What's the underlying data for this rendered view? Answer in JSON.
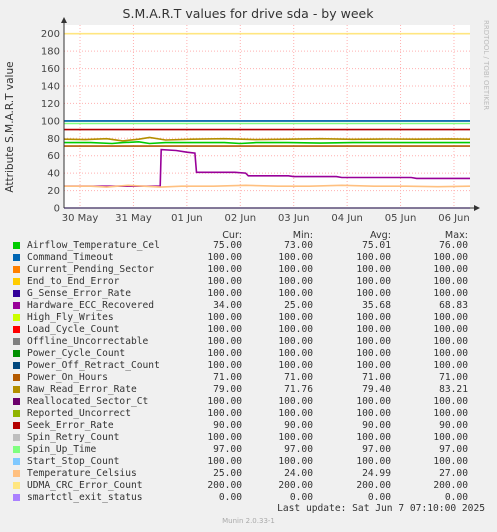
{
  "title": "S.M.A.R.T values for drive sda - by week",
  "watermark": "RRDTOOL / TOBI OETIKER",
  "footer": {
    "last_update": "Last update:  Sat Jun  7 07:10:00 2025",
    "munin": "Munin 2.0.33-1"
  },
  "legend_headers": {
    "cur": "Cur:",
    "min": "Min:",
    "avg": "Avg:",
    "max": "Max:"
  },
  "legend": [
    {
      "name": "Airflow_Temperature_Cel",
      "color": "#00cc00",
      "cur": "75.00",
      "min": "73.00",
      "avg": "75.01",
      "max": "76.00"
    },
    {
      "name": "Command_Timeout",
      "color": "#0066b3",
      "cur": "100.00",
      "min": "100.00",
      "avg": "100.00",
      "max": "100.00"
    },
    {
      "name": "Current_Pending_Sector",
      "color": "#ff8000",
      "cur": "100.00",
      "min": "100.00",
      "avg": "100.00",
      "max": "100.00"
    },
    {
      "name": "End_to_End_Error",
      "color": "#ffcc00",
      "cur": "100.00",
      "min": "100.00",
      "avg": "100.00",
      "max": "100.00"
    },
    {
      "name": "G_Sense_Error_Rate",
      "color": "#330099",
      "cur": "100.00",
      "min": "100.00",
      "avg": "100.00",
      "max": "100.00"
    },
    {
      "name": "Hardware_ECC_Recovered",
      "color": "#990099",
      "cur": "34.00",
      "min": "25.00",
      "avg": "35.68",
      "max": "68.83"
    },
    {
      "name": "High_Fly_Writes",
      "color": "#ccff00",
      "cur": "100.00",
      "min": "100.00",
      "avg": "100.00",
      "max": "100.00"
    },
    {
      "name": "Load_Cycle_Count",
      "color": "#ff0000",
      "cur": "100.00",
      "min": "100.00",
      "avg": "100.00",
      "max": "100.00"
    },
    {
      "name": "Offline_Uncorrectable",
      "color": "#808080",
      "cur": "100.00",
      "min": "100.00",
      "avg": "100.00",
      "max": "100.00"
    },
    {
      "name": "Power_Cycle_Count",
      "color": "#008f00",
      "cur": "100.00",
      "min": "100.00",
      "avg": "100.00",
      "max": "100.00"
    },
    {
      "name": "Power_Off_Retract_Count",
      "color": "#00487d",
      "cur": "100.00",
      "min": "100.00",
      "avg": "100.00",
      "max": "100.00"
    },
    {
      "name": "Power_On_Hours",
      "color": "#b35a00",
      "cur": "71.00",
      "min": "71.00",
      "avg": "71.00",
      "max": "71.00"
    },
    {
      "name": "Raw_Read_Error_Rate",
      "color": "#b38f00",
      "cur": "79.00",
      "min": "71.76",
      "avg": "79.40",
      "max": "83.21"
    },
    {
      "name": "Reallocated_Sector_Ct",
      "color": "#6b006b",
      "cur": "100.00",
      "min": "100.00",
      "avg": "100.00",
      "max": "100.00"
    },
    {
      "name": "Reported_Uncorrect",
      "color": "#8fb300",
      "cur": "100.00",
      "min": "100.00",
      "avg": "100.00",
      "max": "100.00"
    },
    {
      "name": "Seek_Error_Rate",
      "color": "#b30000",
      "cur": "90.00",
      "min": "90.00",
      "avg": "90.00",
      "max": "90.00"
    },
    {
      "name": "Spin_Retry_Count",
      "color": "#bebebe",
      "cur": "100.00",
      "min": "100.00",
      "avg": "100.00",
      "max": "100.00"
    },
    {
      "name": "Spin_Up_Time",
      "color": "#80ff80",
      "cur": "97.00",
      "min": "97.00",
      "avg": "97.00",
      "max": "97.00"
    },
    {
      "name": "Start_Stop_Count",
      "color": "#80c9ff",
      "cur": "100.00",
      "min": "100.00",
      "avg": "100.00",
      "max": "100.00"
    },
    {
      "name": "Temperature_Celsius",
      "color": "#ffc080",
      "cur": "25.00",
      "min": "24.00",
      "avg": "24.99",
      "max": "27.00"
    },
    {
      "name": "UDMA_CRC_Error_Count",
      "color": "#ffe680",
      "cur": "200.00",
      "min": "200.00",
      "avg": "200.00",
      "max": "200.00"
    },
    {
      "name": "smartctl_exit_status",
      "color": "#aa80ff",
      "cur": "0.00",
      "min": "0.00",
      "avg": "0.00",
      "max": "0.00"
    }
  ],
  "chart_data": {
    "type": "line",
    "title": "S.M.A.R.T values for drive sda - by week",
    "ylabel": "Attribute S.M.A.R.T value",
    "ylim": [
      0,
      210
    ],
    "yticks": [
      0,
      20,
      40,
      60,
      80,
      100,
      120,
      140,
      160,
      180,
      200
    ],
    "xlim": [
      0,
      7.6
    ],
    "xticks": [
      {
        "x": 0.3,
        "label": "30 May"
      },
      {
        "x": 1.3,
        "label": "31 May"
      },
      {
        "x": 2.3,
        "label": "01 Jun"
      },
      {
        "x": 3.3,
        "label": "02 Jun"
      },
      {
        "x": 4.3,
        "label": "03 Jun"
      },
      {
        "x": 5.3,
        "label": "04 Jun"
      },
      {
        "x": 6.3,
        "label": "05 Jun"
      },
      {
        "x": 7.3,
        "label": "06 Jun"
      }
    ],
    "grid": true,
    "series": [
      {
        "name": "UDMA_CRC_Error_Count",
        "color": "#ffe680",
        "points": [
          [
            0,
            200
          ],
          [
            7.6,
            200
          ]
        ]
      },
      {
        "name": "Current_Pending_Sector",
        "color": "#ff8000",
        "points": [
          [
            0,
            100
          ],
          [
            7.6,
            100
          ]
        ]
      },
      {
        "name": "Start_Stop_Count",
        "color": "#80c9ff",
        "points": [
          [
            0,
            100
          ],
          [
            7.6,
            100
          ]
        ]
      },
      {
        "name": "Command_Timeout",
        "color": "#0066b3",
        "points": [
          [
            0,
            100
          ],
          [
            7.6,
            100
          ]
        ]
      },
      {
        "name": "Spin_Up_Time",
        "color": "#80ff80",
        "points": [
          [
            0,
            97
          ],
          [
            7.6,
            97
          ]
        ]
      },
      {
        "name": "Seek_Error_Rate",
        "color": "#b30000",
        "points": [
          [
            0,
            90
          ],
          [
            7.6,
            90
          ]
        ]
      },
      {
        "name": "Raw_Read_Error_Rate",
        "color": "#b38f00",
        "points": [
          [
            0,
            79
          ],
          [
            0.4,
            78.5
          ],
          [
            0.8,
            79.5
          ],
          [
            1.1,
            77
          ],
          [
            1.4,
            79
          ],
          [
            1.6,
            81
          ],
          [
            1.9,
            78
          ],
          [
            2.4,
            79
          ],
          [
            3,
            79.5
          ],
          [
            3.6,
            78.5
          ],
          [
            4.2,
            79
          ],
          [
            4.8,
            79.5
          ],
          [
            5.4,
            78.8
          ],
          [
            6,
            79.2
          ],
          [
            6.6,
            79
          ],
          [
            7.2,
            79.3
          ],
          [
            7.6,
            79
          ]
        ]
      },
      {
        "name": "Airflow_Temperature_Cel",
        "color": "#00cc00",
        "points": [
          [
            0,
            75
          ],
          [
            0.5,
            75
          ],
          [
            0.9,
            74
          ],
          [
            1.1,
            75
          ],
          [
            1.4,
            76
          ],
          [
            1.6,
            74
          ],
          [
            1.9,
            75
          ],
          [
            2.4,
            75
          ],
          [
            3,
            75
          ],
          [
            3.3,
            74
          ],
          [
            3.6,
            75
          ],
          [
            4.2,
            75
          ],
          [
            4.8,
            74.5
          ],
          [
            5.4,
            75
          ],
          [
            6,
            75
          ],
          [
            6.6,
            75
          ],
          [
            7.2,
            75
          ],
          [
            7.6,
            75
          ]
        ]
      },
      {
        "name": "Power_On_Hours",
        "color": "#b35a00",
        "points": [
          [
            0,
            71
          ],
          [
            7.6,
            71
          ]
        ]
      },
      {
        "name": "Hardware_ECC_Recovered",
        "color": "#990099",
        "points": [
          [
            0,
            25
          ],
          [
            1.8,
            25
          ],
          [
            1.82,
            67
          ],
          [
            2.1,
            66
          ],
          [
            2.3,
            64
          ],
          [
            2.45,
            63
          ],
          [
            2.48,
            41
          ],
          [
            3.2,
            41
          ],
          [
            3.4,
            40
          ],
          [
            3.45,
            37
          ],
          [
            4.2,
            37
          ],
          [
            4.3,
            36
          ],
          [
            5.1,
            36
          ],
          [
            5.2,
            35
          ],
          [
            6.5,
            35
          ],
          [
            6.6,
            34
          ],
          [
            7.6,
            34
          ]
        ]
      },
      {
        "name": "Temperature_Celsius",
        "color": "#ffc080",
        "points": [
          [
            0,
            25
          ],
          [
            0.5,
            25
          ],
          [
            0.8,
            24
          ],
          [
            1.2,
            26
          ],
          [
            1.5,
            25
          ],
          [
            1.8,
            24
          ],
          [
            2.2,
            25
          ],
          [
            2.8,
            25
          ],
          [
            3.4,
            26
          ],
          [
            4,
            25
          ],
          [
            4.6,
            25
          ],
          [
            5.2,
            26
          ],
          [
            5.8,
            25
          ],
          [
            6.4,
            25
          ],
          [
            7,
            24.5
          ],
          [
            7.6,
            25
          ]
        ]
      },
      {
        "name": "smartctl_exit_status",
        "color": "#aa80ff",
        "points": [
          [
            0,
            0
          ],
          [
            7.6,
            0
          ]
        ]
      }
    ]
  }
}
